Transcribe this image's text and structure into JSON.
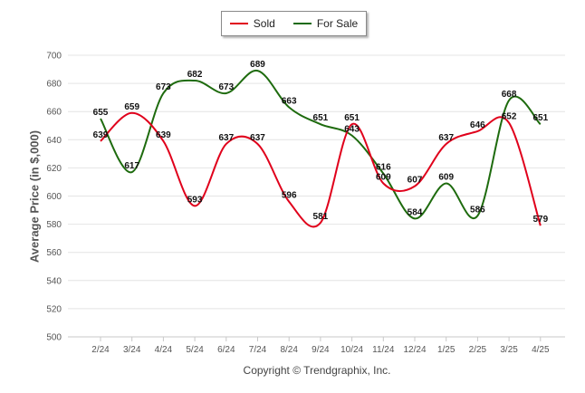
{
  "chart_data": {
    "type": "line",
    "categories": [
      "2/24",
      "3/24",
      "4/24",
      "5/24",
      "6/24",
      "7/24",
      "8/24",
      "9/24",
      "10/24",
      "11/24",
      "12/24",
      "1/25",
      "2/25",
      "3/25",
      "4/25"
    ],
    "series": [
      {
        "name": "Sold",
        "color": "#e0001b",
        "values": [
          639,
          659,
          639,
          593,
          637,
          637,
          596,
          581,
          651,
          609,
          607,
          637,
          646,
          652,
          579
        ]
      },
      {
        "name": "For Sale",
        "color": "#1e6b0e",
        "values": [
          655,
          617,
          673,
          682,
          673,
          689,
          663,
          651,
          643,
          616,
          584,
          609,
          586,
          668,
          651
        ]
      }
    ],
    "ylabel": "Average Price (in $,000)",
    "ylim": [
      500,
      700
    ],
    "yticks": [
      500,
      520,
      540,
      560,
      580,
      600,
      620,
      640,
      660,
      680,
      700
    ],
    "legend_position": "top-center",
    "grid": true
  },
  "footer": "Copyright © Trendgraphix, Inc."
}
